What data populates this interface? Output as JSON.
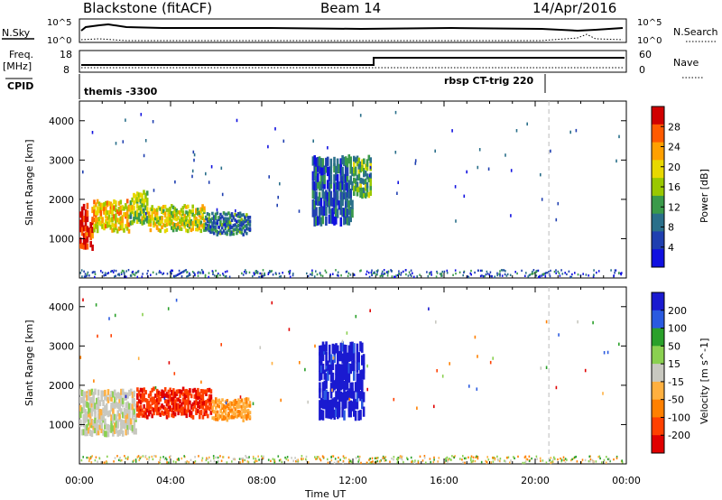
{
  "header": {
    "station": "Blackstone (fitACF)",
    "beam": "Beam 14",
    "date": "14/Apr/2016"
  },
  "top_panels": {
    "nsky_label": "N.Sky",
    "nsky_ticks": [
      "10^5",
      "10^0"
    ],
    "nsearch_label": "N.Search",
    "nsearch_ticks": [
      "10^5",
      "10^0"
    ],
    "freq_label": "Freq.",
    "freq_unit": "[MHz]",
    "freq_ticks": [
      "18",
      "8"
    ],
    "nave_label": "Nave",
    "nave_ticks": [
      "60",
      "0"
    ],
    "cpid_label": "CPID",
    "cpid_segments": [
      "themis -3300",
      "rbsp CT-trig 220"
    ]
  },
  "chart_data": [
    {
      "type": "heatmap",
      "title": "",
      "xlabel": "",
      "ylabel": "Slant Range [km]",
      "xlim": [
        0,
        24
      ],
      "ylim": [
        0,
        4500
      ],
      "yticks": [
        "1000",
        "2000",
        "3000",
        "4000"
      ],
      "colorbar": {
        "label": "Power [dB]",
        "ticks": [
          "28",
          "24",
          "20",
          "16",
          "12",
          "8",
          "4"
        ],
        "colors": [
          "#d00000",
          "#ff5a00",
          "#ffa000",
          "#e8d800",
          "#9ac800",
          "#3a9a4a",
          "#2a6f8a",
          "#1f3fb0",
          "#1010e0"
        ]
      },
      "regions": [
        {
          "x0": 0.0,
          "x1": 0.6,
          "y0": 900,
          "y1": 2000,
          "level": 26
        },
        {
          "x0": 0.6,
          "x1": 2.2,
          "y0": 1300,
          "y1": 2050,
          "level": 18
        },
        {
          "x0": 2.2,
          "x1": 3.0,
          "y0": 1500,
          "y1": 2300,
          "level": 14
        },
        {
          "x0": 3.0,
          "x1": 5.5,
          "y0": 1300,
          "y1": 1900,
          "level": 16
        },
        {
          "x0": 5.5,
          "x1": 7.5,
          "y0": 1200,
          "y1": 1700,
          "level": 8
        },
        {
          "x0": 10.2,
          "x1": 12.0,
          "y0": 1600,
          "y1": 3300,
          "level": 6
        },
        {
          "x0": 12.0,
          "x1": 12.8,
          "y0": 2200,
          "y1": 3200,
          "level": 12
        }
      ]
    },
    {
      "type": "heatmap",
      "title": "",
      "xlabel": "Time UT",
      "ylabel": "Slant Range [km]",
      "xlim": [
        0,
        24
      ],
      "ylim": [
        0,
        4500
      ],
      "xticks": [
        "00:00",
        "04:00",
        "08:00",
        "12:00",
        "16:00",
        "20:00",
        "00:00"
      ],
      "yticks": [
        "1000",
        "2000",
        "3000",
        "4000"
      ],
      "colorbar": {
        "label": "Velocity [m s^-1]",
        "ticks": [
          "200",
          "100",
          "50",
          "15",
          "-15",
          "-50",
          "-100",
          "-200"
        ],
        "colors": [
          "#1a1ad0",
          "#2a5ae0",
          "#2aa02a",
          "#8ad050",
          "#c8c8c0",
          "#ffb040",
          "#ff8000",
          "#ff4000",
          "#e00000"
        ]
      },
      "regions": [
        {
          "x0": 0.0,
          "x1": 2.5,
          "y0": 900,
          "y1": 2000,
          "level": 0
        },
        {
          "x0": 2.5,
          "x1": 5.8,
          "y0": 1300,
          "y1": 2000,
          "level": -150
        },
        {
          "x0": 5.8,
          "x1": 7.5,
          "y0": 1200,
          "y1": 1700,
          "level": -60
        },
        {
          "x0": 10.5,
          "x1": 12.5,
          "y0": 1400,
          "y1": 3300,
          "level": 180
        }
      ]
    }
  ],
  "dashed_marker_hour": 20.6
}
